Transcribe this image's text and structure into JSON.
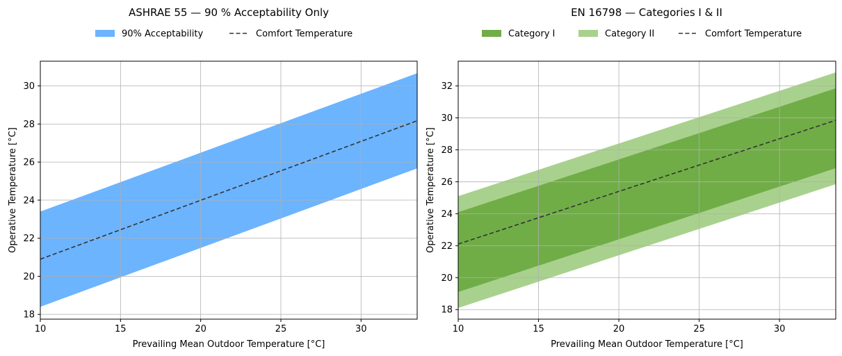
{
  "chart_data": [
    {
      "type": "area",
      "title": "ASHRAE 55 — 90 % Acceptability Only",
      "xlabel": "Prevailing Mean Outdoor Temperature [°C]",
      "ylabel": "Operative Temperature [°C]",
      "xlim": [
        10,
        33.5
      ],
      "ylim": [
        17.75,
        31.3
      ],
      "xticks": [
        10,
        15,
        20,
        25,
        30
      ],
      "yticks": [
        18,
        20,
        22,
        24,
        26,
        28,
        30
      ],
      "grid": true,
      "legend_position": "top-center, above plot",
      "bands": [
        {
          "name": "90% Acceptability",
          "color": "#6cb4fe",
          "lower": {
            "x": [
              10,
              33.5
            ],
            "y": [
              18.4,
              25.67
            ]
          },
          "upper": {
            "x": [
              10,
              33.5
            ],
            "y": [
              23.4,
              30.67
            ]
          }
        }
      ],
      "series": [
        {
          "name": "Comfort Temperature",
          "style": "dashed",
          "color": "#333333",
          "x": [
            10,
            33.5
          ],
          "y": [
            20.9,
            28.17
          ]
        }
      ],
      "legend_order": [
        "90% Acceptability",
        "Comfort Temperature"
      ]
    },
    {
      "type": "area",
      "title": "EN 16798 — Categories I & II",
      "xlabel": "Prevailing Mean Outdoor Temperature [°C]",
      "ylabel": "Operative Temperature [°C]",
      "xlim": [
        10,
        33.5
      ],
      "ylim": [
        17.4,
        33.55
      ],
      "xticks": [
        10,
        15,
        20,
        25,
        30
      ],
      "yticks": [
        18,
        20,
        22,
        24,
        26,
        28,
        30,
        32
      ],
      "grid": true,
      "legend_position": "top-center, above plot",
      "bands": [
        {
          "name": "Category II",
          "color": "#a9d18e",
          "lower": {
            "x": [
              10,
              33.5
            ],
            "y": [
              18.1,
              25.85
            ]
          },
          "upper": {
            "x": [
              10,
              33.5
            ],
            "y": [
              25.1,
              32.85
            ]
          }
        },
        {
          "name": "Category I",
          "color": "#70ad47",
          "lower": {
            "x": [
              10,
              33.5
            ],
            "y": [
              19.1,
              26.85
            ]
          },
          "upper": {
            "x": [
              10,
              33.5
            ],
            "y": [
              24.1,
              31.85
            ]
          }
        }
      ],
      "series": [
        {
          "name": "Comfort Temperature",
          "style": "dashed",
          "color": "#333333",
          "x": [
            10,
            33.5
          ],
          "y": [
            22.1,
            29.85
          ]
        }
      ],
      "legend_order": [
        "Category I",
        "Category II",
        "Comfort Temperature"
      ]
    }
  ]
}
